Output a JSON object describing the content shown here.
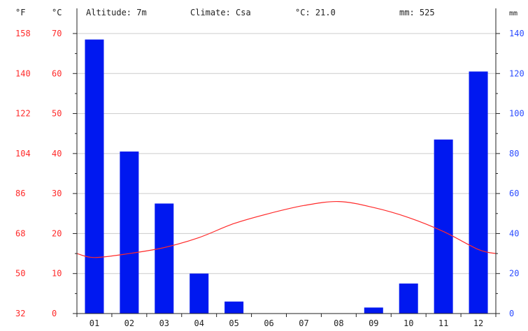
{
  "header": {
    "f_unit": "°F",
    "c_unit": "°C",
    "altitude": "Altitude: 7m",
    "climate": "Climate: Csa",
    "temp_mean": "°C: 21.0",
    "precip_total": "mm: 525",
    "mm_unit": "mm"
  },
  "colors": {
    "temperature": "#ff2a2a",
    "precipitation": "#0018f0",
    "precip_axis": "#2b4cff",
    "grid": "#cccccc",
    "axis": "#222222"
  },
  "chart_data": {
    "type": "bar",
    "categories": [
      "01",
      "02",
      "03",
      "04",
      "05",
      "06",
      "07",
      "08",
      "09",
      "10",
      "11",
      "12"
    ],
    "series": [
      {
        "type": "bar",
        "axis": "right",
        "values": [
          137,
          81,
          55,
          20,
          6,
          0,
          0,
          0,
          3,
          15,
          87,
          121
        ]
      },
      {
        "type": "line",
        "axis": "left",
        "values": [
          14,
          15,
          16.5,
          19,
          22.5,
          25,
          27,
          28,
          26.5,
          24,
          20.5,
          16
        ]
      }
    ],
    "y_left_c": {
      "ylim": [
        0,
        70
      ],
      "ticks": [
        "0",
        "10",
        "20",
        "30",
        "40",
        "50",
        "60",
        "70"
      ]
    },
    "y_left_f": {
      "ticks": [
        "32",
        "50",
        "68",
        "86",
        "104",
        "122",
        "140",
        "158"
      ]
    },
    "y_right_mm": {
      "ylim": [
        0,
        140
      ],
      "ticks": [
        "0",
        "20",
        "40",
        "60",
        "80",
        "100",
        "120",
        "140"
      ]
    },
    "grid": true
  }
}
